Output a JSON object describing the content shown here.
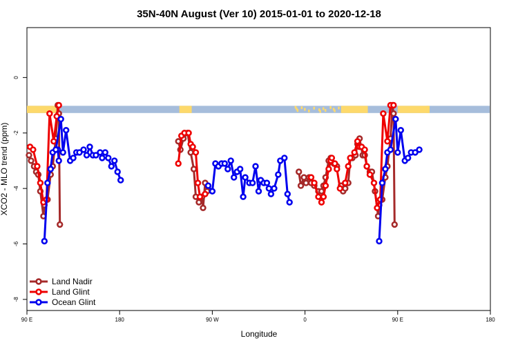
{
  "chart_data": {
    "type": "line",
    "title": "35N-40N August (Ver 10)   2015-01-01 to 2020-12-18",
    "xlabel": "Longitude",
    "ylabel": "XCO2 - MLO trend (ppm)",
    "xlim": [
      90,
      540
    ],
    "ylim": [
      -8.4,
      1.8
    ],
    "x_ticks": [
      {
        "value": 90,
        "label": "90 E"
      },
      {
        "value": 180,
        "label": "180"
      },
      {
        "value": 270,
        "label": "90 W"
      },
      {
        "value": 360,
        "label": "0"
      },
      {
        "value": 450,
        "label": "90 E"
      },
      {
        "value": 540,
        "label": "180"
      }
    ],
    "y_ticks": [
      {
        "value": 0,
        "label": "0"
      },
      {
        "value": -2,
        "label": "-2"
      },
      {
        "value": -4,
        "label": "-4"
      },
      {
        "value": -6,
        "label": "-6"
      },
      {
        "value": -8,
        "label": "-8"
      }
    ],
    "land_ocean_strip": {
      "y_range": [
        -1.28,
        -1.02
      ],
      "ocean_color": "#a6bddb",
      "land_color": "#fdd96b",
      "land_segments": [
        [
          90,
          120
        ],
        [
          238,
          250
        ],
        [
          395,
          421
        ],
        [
          450,
          480
        ],
        [
          478,
          481
        ]
      ],
      "speckle_land_x": [
        350,
        351,
        352,
        356,
        359,
        363,
        368,
        373,
        374,
        377,
        379,
        384,
        387,
        388,
        392
      ]
    },
    "series": [
      {
        "name": "Land Nadir",
        "color": "#a52a2a",
        "segments": [
          [
            [
              92,
              -2.8
            ],
            [
              94,
              -3.0
            ],
            [
              97,
              -3.2
            ],
            [
              99,
              -3.4
            ],
            [
              101,
              -3.5
            ],
            [
              103,
              -4.1
            ],
            [
              106,
              -5.0
            ],
            [
              107,
              -4.6
            ],
            [
              110,
              -4.4
            ],
            [
              113,
              -3.5
            ],
            [
              115,
              -3.2
            ],
            [
              118,
              -2.2
            ],
            [
              120,
              -1.0
            ],
            [
              121,
              -1.3
            ],
            [
              122,
              -5.3
            ]
          ],
          [
            [
              237,
              -2.3
            ],
            [
              239,
              -2.6
            ],
            [
              242,
              -2.2
            ],
            [
              246,
              -2.0
            ],
            [
              249,
              -2.7
            ],
            [
              252,
              -3.3
            ],
            [
              254,
              -4.3
            ],
            [
              257,
              -4.5
            ],
            [
              260,
              -4.3
            ],
            [
              261,
              -4.7
            ],
            [
              263,
              -3.8
            ],
            [
              265,
              -4.1
            ]
          ],
          [
            [
              354,
              -3.4
            ],
            [
              356,
              -3.9
            ],
            [
              359,
              -3.6
            ],
            [
              361,
              -3.8
            ],
            [
              364,
              -3.6
            ],
            [
              366,
              -3.8
            ],
            [
              369,
              -3.9
            ],
            [
              373,
              -4.1
            ],
            [
              376,
              -4.1
            ],
            [
              378,
              -3.9
            ],
            [
              380,
              -3.6
            ],
            [
              383,
              -3.0
            ],
            [
              385,
              -2.9
            ],
            [
              388,
              -3.1
            ],
            [
              391,
              -3.2
            ]
          ],
          [
            [
              395,
              -3.9
            ],
            [
              397,
              -4.1
            ],
            [
              399,
              -4.0
            ],
            [
              402,
              -3.8
            ],
            [
              404,
              -2.9
            ],
            [
              406,
              -2.9
            ],
            [
              409,
              -2.8
            ],
            [
              411,
              -2.4
            ],
            [
              413,
              -2.2
            ],
            [
              416,
              -2.8
            ],
            [
              418,
              -2.8
            ],
            [
              420,
              -3.2
            ],
            [
              423,
              -3.4
            ],
            [
              425,
              -3.4
            ],
            [
              428,
              -4.1
            ],
            [
              431,
              -5.0
            ],
            [
              432,
              -4.6
            ],
            [
              435,
              -4.4
            ],
            [
              438,
              -3.6
            ],
            [
              440,
              -3.2
            ],
            [
              443,
              -2.2
            ],
            [
              445,
              -1.0
            ],
            [
              446,
              -1.3
            ],
            [
              447,
              -5.3
            ]
          ]
        ]
      },
      {
        "name": "Land Glint",
        "color": "#ee0000",
        "segments": [
          [
            [
              93,
              -2.5
            ],
            [
              96,
              -2.6
            ],
            [
              100,
              -3.2
            ],
            [
              103,
              -3.8
            ],
            [
              106,
              -4.5
            ],
            [
              109,
              -4.4
            ],
            [
              112,
              -1.3
            ],
            [
              116,
              -2.3
            ],
            [
              119,
              -1.4
            ],
            [
              121,
              -1.0
            ]
          ],
          [
            [
              237,
              -3.1
            ],
            [
              240,
              -2.1
            ],
            [
              243,
              -2.0
            ],
            [
              247,
              -2.0
            ],
            [
              249,
              -2.4
            ],
            [
              251,
              -2.5
            ],
            [
              254,
              -2.7
            ],
            [
              256,
              -3.8
            ],
            [
              258,
              -4.3
            ],
            [
              263,
              -4.2
            ]
          ],
          [
            [
              366,
              -3.6
            ],
            [
              369,
              -3.8
            ],
            [
              373,
              -4.3
            ],
            [
              376,
              -4.5
            ],
            [
              378,
              -4.3
            ],
            [
              380,
              -3.9
            ],
            [
              383,
              -3.3
            ],
            [
              385,
              -3.0
            ],
            [
              386,
              -2.9
            ],
            [
              389,
              -3.1
            ],
            [
              391,
              -3.3
            ],
            [
              394,
              -4.0
            ]
          ],
          [
            [
              399,
              -3.8
            ],
            [
              402,
              -3.2
            ],
            [
              404,
              -2.9
            ],
            [
              408,
              -2.7
            ],
            [
              411,
              -2.3
            ],
            [
              413,
              -2.5
            ],
            [
              415,
              -2.5
            ],
            [
              418,
              -2.6
            ],
            [
              420,
              -3.2
            ],
            [
              423,
              -3.5
            ],
            [
              427,
              -3.8
            ],
            [
              430,
              -4.7
            ],
            [
              433,
              -4.4
            ],
            [
              436,
              -1.3
            ],
            [
              440,
              -2.3
            ],
            [
              443,
              -1.0
            ],
            [
              446,
              -1.0
            ]
          ]
        ]
      },
      {
        "name": "Ocean Glint",
        "color": "#0000ee",
        "segments": [
          [
            [
              120,
              -2.6
            ],
            [
              121,
              -3.0
            ]
          ],
          [
            [
              107,
              -5.9
            ],
            [
              110,
              -3.8
            ],
            [
              113,
              -3.3
            ],
            [
              115,
              -2.7
            ],
            [
              118,
              -2.6
            ],
            [
              123,
              -1.5
            ],
            [
              125,
              -2.7
            ],
            [
              128,
              -1.9
            ],
            [
              132,
              -3.0
            ],
            [
              135,
              -2.9
            ],
            [
              138,
              -2.7
            ],
            [
              141,
              -2.7
            ],
            [
              145,
              -2.6
            ],
            [
              148,
              -2.8
            ],
            [
              151,
              -2.5
            ],
            [
              154,
              -2.8
            ],
            [
              157,
              -2.8
            ],
            [
              161,
              -2.7
            ],
            [
              163,
              -2.9
            ],
            [
              166,
              -2.7
            ],
            [
              169,
              -2.9
            ],
            [
              172,
              -3.2
            ],
            [
              175,
              -3.0
            ],
            [
              178,
              -3.4
            ],
            [
              181,
              -3.7
            ]
          ],
          [
            [
              266,
              -3.9
            ],
            [
              270,
              -4.1
            ],
            [
              273,
              -3.1
            ],
            [
              276,
              -3.2
            ],
            [
              279,
              -3.1
            ],
            [
              282,
              -3.1
            ],
            [
              285,
              -3.3
            ],
            [
              288,
              -3.0
            ],
            [
              291,
              -3.6
            ],
            [
              294,
              -3.4
            ],
            [
              297,
              -3.3
            ],
            [
              300,
              -4.3
            ],
            [
              302,
              -3.6
            ],
            [
              306,
              -3.8
            ],
            [
              309,
              -3.8
            ],
            [
              312,
              -3.2
            ],
            [
              315,
              -4.1
            ],
            [
              317,
              -3.7
            ],
            [
              320,
              -3.8
            ],
            [
              323,
              -3.8
            ],
            [
              325,
              -4.0
            ],
            [
              327,
              -4.2
            ],
            [
              330,
              -4.0
            ],
            [
              334,
              -3.5
            ],
            [
              336,
              -3.0
            ],
            [
              340,
              -2.9
            ],
            [
              343,
              -4.2
            ],
            [
              345,
              -4.5
            ]
          ],
          [
            [
              432,
              -5.9
            ],
            [
              435,
              -3.8
            ],
            [
              438,
              -3.3
            ],
            [
              440,
              -2.7
            ],
            [
              443,
              -2.6
            ],
            [
              448,
              -1.5
            ],
            [
              450,
              -2.7
            ],
            [
              453,
              -1.9
            ],
            [
              457,
              -3.0
            ],
            [
              460,
              -2.9
            ],
            [
              463,
              -2.7
            ],
            [
              467,
              -2.7
            ],
            [
              471,
              -2.6
            ]
          ]
        ]
      }
    ],
    "legend": {
      "position": "bottom-left",
      "entries": [
        "Land Nadir",
        "Land Glint",
        "Ocean Glint"
      ]
    }
  }
}
